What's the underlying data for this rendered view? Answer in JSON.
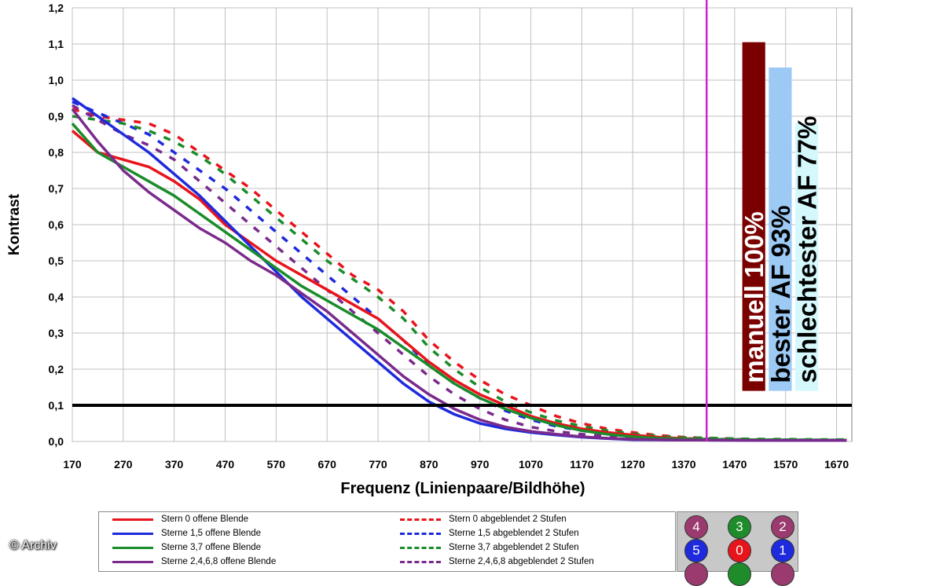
{
  "chart_data": {
    "type": "line",
    "title": "",
    "xlabel": "Frequenz (Linienpaare/Bildhöhe)",
    "ylabel": "Kontrast",
    "xlim": [
      170,
      1700
    ],
    "ylim": [
      0,
      1.2
    ],
    "x_ticks": [
      "170",
      "270",
      "370",
      "470",
      "570",
      "670",
      "770",
      "870",
      "970",
      "1070",
      "1170",
      "1270",
      "1370",
      "1470",
      "1570",
      "1670"
    ],
    "y_ticks": [
      "0,0",
      "0,1",
      "0,2",
      "0,3",
      "0,4",
      "0,5",
      "0,6",
      "0,7",
      "0,8",
      "0,9",
      "1,0",
      "1,1",
      "1,2"
    ],
    "grid": true,
    "reference_line": {
      "y": 0.1,
      "color": "#000000"
    },
    "marker_line": {
      "x": 1415,
      "color": "#d020d0"
    },
    "series": [
      {
        "name": "Stern 0 offene Blende",
        "color": "#e8141c",
        "dash": false,
        "points": [
          [
            170,
            0.86
          ],
          [
            220,
            0.8
          ],
          [
            270,
            0.78
          ],
          [
            320,
            0.76
          ],
          [
            370,
            0.72
          ],
          [
            420,
            0.67
          ],
          [
            470,
            0.6
          ],
          [
            520,
            0.55
          ],
          [
            570,
            0.5
          ],
          [
            620,
            0.46
          ],
          [
            670,
            0.42
          ],
          [
            720,
            0.38
          ],
          [
            770,
            0.34
          ],
          [
            820,
            0.28
          ],
          [
            870,
            0.22
          ],
          [
            920,
            0.17
          ],
          [
            970,
            0.13
          ],
          [
            1020,
            0.1
          ],
          [
            1070,
            0.07
          ],
          [
            1120,
            0.05
          ],
          [
            1170,
            0.035
          ],
          [
            1220,
            0.025
          ],
          [
            1270,
            0.018
          ],
          [
            1320,
            0.012
          ],
          [
            1370,
            0.008
          ],
          [
            1420,
            0.006
          ],
          [
            1500,
            0.004
          ],
          [
            1600,
            0.003
          ],
          [
            1690,
            0.003
          ]
        ]
      },
      {
        "name": "Sterne 1,5 offene Blende",
        "color": "#1e2adc",
        "dash": false,
        "points": [
          [
            170,
            0.95
          ],
          [
            220,
            0.9
          ],
          [
            270,
            0.85
          ],
          [
            320,
            0.8
          ],
          [
            370,
            0.74
          ],
          [
            420,
            0.68
          ],
          [
            470,
            0.61
          ],
          [
            520,
            0.54
          ],
          [
            570,
            0.47
          ],
          [
            620,
            0.4
          ],
          [
            670,
            0.34
          ],
          [
            720,
            0.28
          ],
          [
            770,
            0.22
          ],
          [
            820,
            0.16
          ],
          [
            870,
            0.11
          ],
          [
            920,
            0.075
          ],
          [
            970,
            0.05
          ],
          [
            1020,
            0.035
          ],
          [
            1070,
            0.025
          ],
          [
            1120,
            0.018
          ],
          [
            1170,
            0.012
          ],
          [
            1220,
            0.008
          ],
          [
            1270,
            0.005
          ],
          [
            1370,
            0.004
          ],
          [
            1500,
            0.003
          ],
          [
            1690,
            0.003
          ]
        ]
      },
      {
        "name": "Sterne 3,7 offene Blende",
        "color": "#1a8c2a",
        "dash": false,
        "points": [
          [
            170,
            0.88
          ],
          [
            220,
            0.8
          ],
          [
            270,
            0.76
          ],
          [
            320,
            0.72
          ],
          [
            370,
            0.68
          ],
          [
            420,
            0.63
          ],
          [
            470,
            0.58
          ],
          [
            520,
            0.53
          ],
          [
            570,
            0.48
          ],
          [
            620,
            0.43
          ],
          [
            670,
            0.39
          ],
          [
            720,
            0.35
          ],
          [
            770,
            0.31
          ],
          [
            820,
            0.26
          ],
          [
            870,
            0.21
          ],
          [
            920,
            0.16
          ],
          [
            970,
            0.12
          ],
          [
            1020,
            0.09
          ],
          [
            1070,
            0.065
          ],
          [
            1120,
            0.045
          ],
          [
            1170,
            0.03
          ],
          [
            1220,
            0.02
          ],
          [
            1270,
            0.013
          ],
          [
            1320,
            0.009
          ],
          [
            1370,
            0.007
          ],
          [
            1500,
            0.005
          ],
          [
            1690,
            0.004
          ]
        ]
      },
      {
        "name": "Sterne 2,4,6,8 offene Blende",
        "color": "#7a2a8c",
        "dash": false,
        "points": [
          [
            170,
            0.92
          ],
          [
            220,
            0.83
          ],
          [
            270,
            0.75
          ],
          [
            320,
            0.69
          ],
          [
            370,
            0.64
          ],
          [
            420,
            0.59
          ],
          [
            470,
            0.55
          ],
          [
            520,
            0.5
          ],
          [
            570,
            0.46
          ],
          [
            620,
            0.41
          ],
          [
            670,
            0.36
          ],
          [
            720,
            0.3
          ],
          [
            770,
            0.24
          ],
          [
            820,
            0.18
          ],
          [
            870,
            0.13
          ],
          [
            920,
            0.09
          ],
          [
            970,
            0.06
          ],
          [
            1020,
            0.04
          ],
          [
            1070,
            0.028
          ],
          [
            1120,
            0.02
          ],
          [
            1170,
            0.013
          ],
          [
            1220,
            0.009
          ],
          [
            1270,
            0.006
          ],
          [
            1370,
            0.004
          ],
          [
            1500,
            0.003
          ],
          [
            1690,
            0.003
          ]
        ]
      },
      {
        "name": "Stern 0 abgeblendet 2 Stufen",
        "color": "#e8141c",
        "dash": true,
        "points": [
          [
            170,
            0.92
          ],
          [
            220,
            0.9
          ],
          [
            270,
            0.89
          ],
          [
            320,
            0.88
          ],
          [
            370,
            0.85
          ],
          [
            420,
            0.8
          ],
          [
            470,
            0.75
          ],
          [
            520,
            0.7
          ],
          [
            570,
            0.64
          ],
          [
            620,
            0.58
          ],
          [
            670,
            0.52
          ],
          [
            720,
            0.46
          ],
          [
            770,
            0.42
          ],
          [
            820,
            0.36
          ],
          [
            870,
            0.28
          ],
          [
            920,
            0.22
          ],
          [
            970,
            0.17
          ],
          [
            1020,
            0.13
          ],
          [
            1070,
            0.1
          ],
          [
            1120,
            0.07
          ],
          [
            1170,
            0.05
          ],
          [
            1220,
            0.035
          ],
          [
            1270,
            0.025
          ],
          [
            1320,
            0.017
          ],
          [
            1370,
            0.012
          ],
          [
            1420,
            0.009
          ],
          [
            1500,
            0.006
          ],
          [
            1600,
            0.004
          ],
          [
            1690,
            0.004
          ]
        ]
      },
      {
        "name": "Sterne 1,5 abgeblendet 2 Stufen",
        "color": "#1e2adc",
        "dash": true,
        "points": [
          [
            170,
            0.94
          ],
          [
            220,
            0.91
          ],
          [
            270,
            0.88
          ],
          [
            320,
            0.85
          ],
          [
            370,
            0.8
          ],
          [
            420,
            0.75
          ],
          [
            470,
            0.7
          ],
          [
            520,
            0.64
          ],
          [
            570,
            0.58
          ],
          [
            620,
            0.52
          ],
          [
            670,
            0.46
          ],
          [
            720,
            0.4
          ],
          [
            770,
            0.34
          ],
          [
            820,
            0.28
          ],
          [
            870,
            0.21
          ],
          [
            920,
            0.16
          ],
          [
            970,
            0.12
          ],
          [
            1020,
            0.085
          ],
          [
            1070,
            0.06
          ],
          [
            1120,
            0.042
          ],
          [
            1170,
            0.03
          ],
          [
            1220,
            0.02
          ],
          [
            1270,
            0.014
          ],
          [
            1370,
            0.008
          ],
          [
            1500,
            0.005
          ],
          [
            1690,
            0.004
          ]
        ]
      },
      {
        "name": "Sterne 3,7 abgeblendet 2 Stufen",
        "color": "#1a8c2a",
        "dash": true,
        "points": [
          [
            170,
            0.9
          ],
          [
            220,
            0.89
          ],
          [
            270,
            0.88
          ],
          [
            320,
            0.86
          ],
          [
            370,
            0.83
          ],
          [
            420,
            0.79
          ],
          [
            470,
            0.74
          ],
          [
            520,
            0.68
          ],
          [
            570,
            0.62
          ],
          [
            620,
            0.56
          ],
          [
            670,
            0.5
          ],
          [
            720,
            0.45
          ],
          [
            770,
            0.4
          ],
          [
            820,
            0.34
          ],
          [
            870,
            0.26
          ],
          [
            920,
            0.2
          ],
          [
            970,
            0.15
          ],
          [
            1020,
            0.11
          ],
          [
            1070,
            0.08
          ],
          [
            1120,
            0.058
          ],
          [
            1170,
            0.042
          ],
          [
            1220,
            0.03
          ],
          [
            1270,
            0.021
          ],
          [
            1320,
            0.015
          ],
          [
            1370,
            0.011
          ],
          [
            1500,
            0.007
          ],
          [
            1690,
            0.005
          ]
        ]
      },
      {
        "name": "Sterne 2,4,6,8 abgeblendet 2 Stufen",
        "color": "#7a2a8c",
        "dash": true,
        "points": [
          [
            170,
            0.93
          ],
          [
            220,
            0.89
          ],
          [
            270,
            0.85
          ],
          [
            320,
            0.82
          ],
          [
            370,
            0.78
          ],
          [
            420,
            0.72
          ],
          [
            470,
            0.66
          ],
          [
            520,
            0.6
          ],
          [
            570,
            0.54
          ],
          [
            620,
            0.48
          ],
          [
            670,
            0.42
          ],
          [
            720,
            0.36
          ],
          [
            770,
            0.3
          ],
          [
            820,
            0.24
          ],
          [
            870,
            0.18
          ],
          [
            920,
            0.13
          ],
          [
            970,
            0.09
          ],
          [
            1020,
            0.06
          ],
          [
            1070,
            0.04
          ],
          [
            1120,
            0.028
          ],
          [
            1170,
            0.02
          ],
          [
            1220,
            0.014
          ],
          [
            1270,
            0.01
          ],
          [
            1370,
            0.006
          ],
          [
            1500,
            0.004
          ],
          [
            1690,
            0.004
          ]
        ]
      }
    ],
    "bars": [
      {
        "label": "manuell 100%",
        "value": 1.105,
        "x_from": 1485,
        "x_to": 1530,
        "color": "#7a0000",
        "text_color": "#ffffff"
      },
      {
        "label": "bester AF 93%",
        "value": 1.035,
        "x_from": 1537,
        "x_to": 1582,
        "color": "#9ccaf4",
        "text_color": "#000000"
      },
      {
        "label": "schlechtester AF 77%",
        "value": 0.88,
        "x_from": 1589,
        "x_to": 1634,
        "color": "#d4f8fb",
        "text_color": "#000000"
      }
    ]
  },
  "legend": [
    {
      "label": "Stern 0 offene Blende",
      "color": "#e8141c",
      "dash": false
    },
    {
      "label": "Stern 0 abgeblendet 2 Stufen",
      "color": "#e8141c",
      "dash": true
    },
    {
      "label": "Sterne 1,5 offene Blende",
      "color": "#1e2adc",
      "dash": false
    },
    {
      "label": "Sterne 1,5 abgeblendet 2 Stufen",
      "color": "#1e2adc",
      "dash": true
    },
    {
      "label": "Sterne 3,7 offene Blende",
      "color": "#1a8c2a",
      "dash": false
    },
    {
      "label": "Sterne 3,7 abgeblendet 2 Stufen",
      "color": "#1a8c2a",
      "dash": true
    },
    {
      "label": "Sterne 2,4,6,8 offene Blende",
      "color": "#7a2a8c",
      "dash": false
    },
    {
      "label": "Sterne 2,4,6,8 abgeblendet 2 Stufen",
      "color": "#7a2a8c",
      "dash": true
    }
  ],
  "star_grid": [
    {
      "label": "4",
      "color": "#9a3a6e"
    },
    {
      "label": "3",
      "color": "#1e8c2a"
    },
    {
      "label": "2",
      "color": "#9a3a6e"
    },
    {
      "label": "5",
      "color": "#1e2adc"
    },
    {
      "label": "0",
      "color": "#e8141c"
    },
    {
      "label": "1",
      "color": "#1e2adc"
    },
    {
      "label": "",
      "color": "#9a3a6e"
    },
    {
      "label": "",
      "color": "#1e8c2a"
    },
    {
      "label": "",
      "color": "#9a3a6e"
    }
  ],
  "copyright": "© Archiv"
}
